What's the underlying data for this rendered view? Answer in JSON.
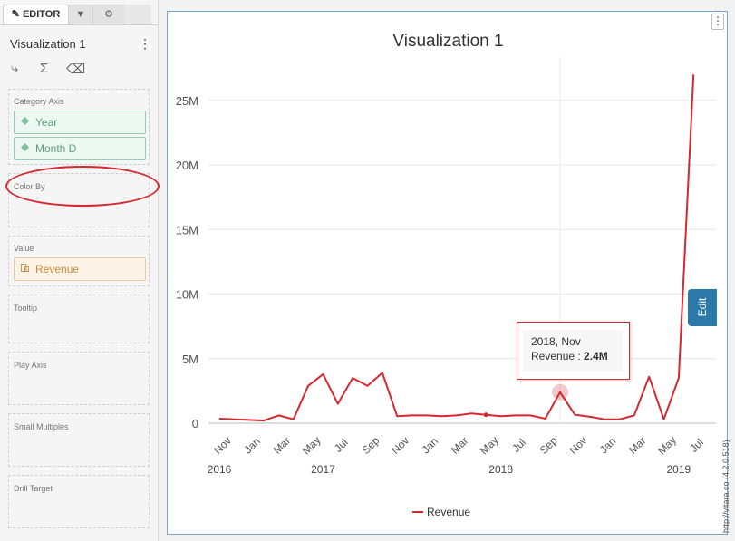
{
  "editor": {
    "tabs": [
      {
        "label": "EDITOR"
      }
    ],
    "viz_name": "Visualization 1",
    "sections": {
      "category_axis": {
        "label": "Category Axis",
        "items": [
          "Year",
          "Month D"
        ]
      },
      "color_by": {
        "label": "Color By"
      },
      "value": {
        "label": "Value",
        "items": [
          "Revenue"
        ]
      },
      "tooltip": {
        "label": "Tooltip"
      },
      "play_axis": {
        "label": "Play Axis"
      },
      "small_multiples": {
        "label": "Small Multiples"
      },
      "drill_target": {
        "label": "Drill Target"
      }
    }
  },
  "chart": {
    "title": "Visualization 1",
    "edit_label": "Edit",
    "tooltip": {
      "line1": "2018, Nov",
      "label": "Revenue : ",
      "value": "2.4M"
    },
    "credit_link": "http://vitara.co",
    "credit_version": "(4.2.0.518)"
  },
  "chart_data": {
    "type": "line",
    "title": "Visualization 1",
    "series": [
      {
        "name": "Revenue",
        "color": "#d6282f",
        "values": [
          0.35,
          0.3,
          0.25,
          0.2,
          0.6,
          0.3,
          2.9,
          3.8,
          1.5,
          3.5,
          2.9,
          3.9,
          0.55,
          0.6,
          0.6,
          0.55,
          0.6,
          0.75,
          0.65,
          0.55,
          0.6,
          0.6,
          0.35,
          2.4,
          0.65,
          0.5,
          0.3,
          0.3,
          0.6,
          3.6,
          0.3,
          3.5,
          27.0
        ]
      }
    ],
    "x_tick_labels": [
      "Nov",
      "Jan",
      "Mar",
      "May",
      "Jul",
      "Sep",
      "Nov",
      "Jan",
      "Mar",
      "May",
      "Jul",
      "Sep",
      "Nov",
      "Jan",
      "Mar",
      "May",
      "Jul"
    ],
    "years": [
      "2016",
      "2017",
      "2018",
      "2019"
    ],
    "y_ticks": [
      0,
      5,
      10,
      15,
      20,
      25
    ],
    "y_tick_labels": [
      "0",
      "5M",
      "10M",
      "15M",
      "20M",
      "25M"
    ],
    "ylim": [
      0,
      28
    ],
    "legend": "bottom-center",
    "grid": true
  }
}
